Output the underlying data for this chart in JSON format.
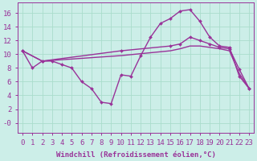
{
  "background_color": "#cceee8",
  "grid_color": "#aaddcc",
  "line_color": "#993399",
  "xlabel": "Windchill (Refroidissement éolien,°C)",
  "xlim": [
    -0.5,
    23.5
  ],
  "ylim": [
    -1.5,
    17.5
  ],
  "yticks": [
    0,
    2,
    4,
    6,
    8,
    10,
    12,
    14,
    16
  ],
  "ytick_labels": [
    "-0",
    "2",
    "4",
    "6",
    "8",
    "10",
    "12",
    "14",
    "16"
  ],
  "xticks": [
    0,
    1,
    2,
    3,
    4,
    5,
    6,
    7,
    8,
    9,
    10,
    11,
    12,
    13,
    14,
    15,
    16,
    17,
    18,
    19,
    20,
    21,
    22,
    23
  ],
  "line1_x": [
    0,
    1,
    2,
    3,
    4,
    5,
    6,
    7,
    8,
    9,
    10,
    11,
    12,
    13,
    14,
    15,
    16,
    17,
    18,
    19,
    20,
    21,
    22,
    23
  ],
  "line1_y": [
    10.5,
    8.0,
    9.0,
    9.0,
    8.5,
    8.0,
    6.0,
    5.0,
    3.0,
    2.8,
    7.0,
    6.8,
    9.8,
    12.5,
    14.5,
    15.2,
    16.3,
    16.5,
    14.8,
    12.5,
    11.2,
    11.0,
    6.8,
    5.0
  ],
  "line2_x": [
    0,
    2,
    10,
    15,
    16,
    17,
    18,
    19,
    20,
    21,
    22,
    23
  ],
  "line2_y": [
    10.5,
    9.0,
    10.5,
    11.2,
    11.5,
    12.5,
    12.0,
    11.5,
    11.0,
    10.8,
    7.8,
    5.0
  ],
  "line3_x": [
    0,
    2,
    10,
    15,
    16,
    17,
    18,
    19,
    20,
    21,
    22,
    23
  ],
  "line3_y": [
    10.5,
    9.0,
    9.8,
    10.5,
    10.8,
    11.2,
    11.2,
    11.0,
    10.8,
    10.5,
    7.2,
    5.0
  ],
  "fontsize_label": 6.5,
  "fontsize_tick": 6.5,
  "linewidth": 1.0
}
